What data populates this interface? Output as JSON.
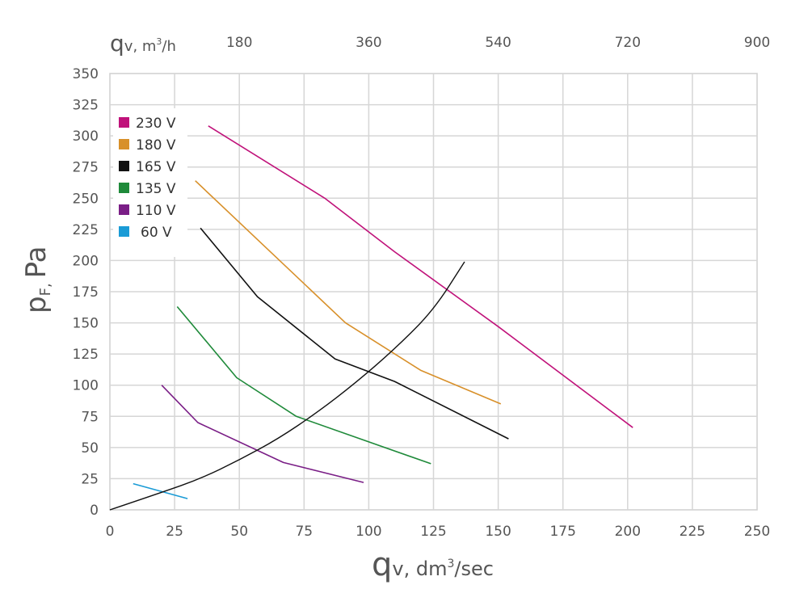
{
  "chart_data": {
    "type": "line",
    "xlabel": {
      "main": "q",
      "sub": "v",
      "rest": ", dm",
      "sup": "3",
      "tail": "/sec"
    },
    "ylabel": {
      "main": "p",
      "sub": "F,",
      "rest": "Pa"
    },
    "top_axis_label": {
      "main": "q",
      "sub": "v",
      "rest": ", m",
      "sup": "3",
      "tail": "/h"
    },
    "xlim": [
      0,
      250
    ],
    "ylim": [
      0,
      350
    ],
    "x_ticks": [
      0,
      25,
      50,
      75,
      100,
      125,
      150,
      175,
      200,
      225,
      250
    ],
    "y_ticks": [
      0,
      25,
      50,
      75,
      100,
      125,
      150,
      175,
      200,
      225,
      250,
      275,
      300,
      325,
      350
    ],
    "top_ticks": [
      {
        "label": "180",
        "x": 50
      },
      {
        "label": "360",
        "x": 100
      },
      {
        "label": "540",
        "x": 150
      },
      {
        "label": "720",
        "x": 200
      },
      {
        "label": "900",
        "x": 250
      }
    ],
    "grid": true,
    "legend_position": "top-left",
    "series": [
      {
        "name": "230 V",
        "color": "#c0127a",
        "points": [
          [
            38,
            308
          ],
          [
            83,
            250
          ],
          [
            110,
            207
          ],
          [
            150,
            147
          ],
          [
            202,
            66
          ]
        ]
      },
      {
        "name": "180 V",
        "color": "#d8902a",
        "points": [
          [
            33,
            264
          ],
          [
            91,
            150
          ],
          [
            120,
            112
          ],
          [
            151,
            85
          ]
        ]
      },
      {
        "name": "165 V",
        "color": "#111111",
        "points": [
          [
            35,
            226
          ],
          [
            57,
            171
          ],
          [
            87,
            121
          ],
          [
            110,
            103
          ],
          [
            154,
            57
          ]
        ]
      },
      {
        "name": "135 V",
        "color": "#1f8a3a",
        "points": [
          [
            26,
            163
          ],
          [
            49,
            106
          ],
          [
            72,
            75
          ],
          [
            124,
            37
          ]
        ]
      },
      {
        "name": "110 V",
        "color": "#7a1e86",
        "points": [
          [
            20,
            100
          ],
          [
            34,
            70
          ],
          [
            67,
            38
          ],
          [
            98,
            22
          ]
        ]
      },
      {
        "name": "60 V",
        "color": "#1a9bd6",
        "points": [
          [
            9,
            21
          ],
          [
            30,
            9
          ]
        ]
      }
    ],
    "system_curve": {
      "color": "#111111",
      "points": [
        [
          0,
          0
        ],
        [
          20,
          14
        ],
        [
          35,
          25
        ],
        [
          50,
          40
        ],
        [
          65,
          57
        ],
        [
          80,
          78
        ],
        [
          95,
          102
        ],
        [
          110,
          129
        ],
        [
          125,
          160
        ],
        [
          137,
          199
        ]
      ]
    }
  }
}
